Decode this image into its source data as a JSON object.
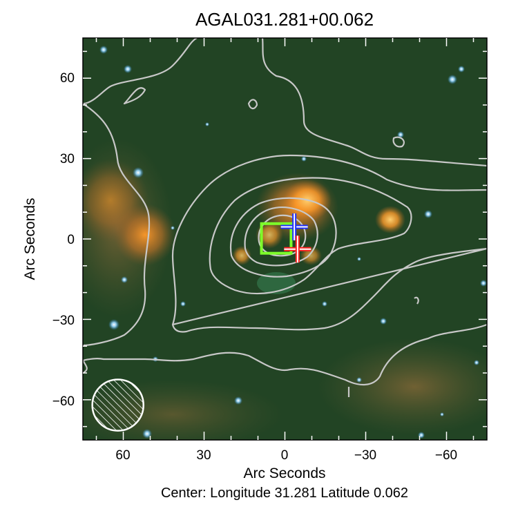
{
  "figure": {
    "title": "AGAL031.281+00.062",
    "x_label": "Arc Seconds",
    "y_label": "Arc Seconds",
    "caption": "Center:  Longitude 31.281 Latitude 0.062",
    "x_ticks": [
      "60",
      "30",
      "0",
      "−30",
      "−60"
    ],
    "y_ticks": [
      "60",
      "30",
      "0",
      "−30",
      "−60"
    ],
    "x_range_arcsec": [
      75,
      -75
    ],
    "y_range_arcsec": [
      -75,
      75
    ],
    "contour_color": "#c8c8c8",
    "marker_colors": {
      "box": "#7dff2a",
      "cross_a_outer": "#2030ff",
      "cross_a_inner": "#ffffff",
      "cross_b_outer": "#ff2020",
      "cross_b_inner": "#ffffff",
      "beam": "#ffffff"
    },
    "markers": [
      {
        "kind": "box-icon",
        "name": "green-square-marker",
        "x": 3.2,
        "y": 0.2,
        "size": 11
      },
      {
        "kind": "cross-icon",
        "name": "blue-cross-marker",
        "x": -3.5,
        "y": 4.5
      },
      {
        "kind": "cross-icon",
        "name": "red-cross-marker",
        "x": -4.7,
        "y": -3.8
      }
    ],
    "beam": {
      "x": 62,
      "y": -62,
      "radius": 9.5
    }
  }
}
